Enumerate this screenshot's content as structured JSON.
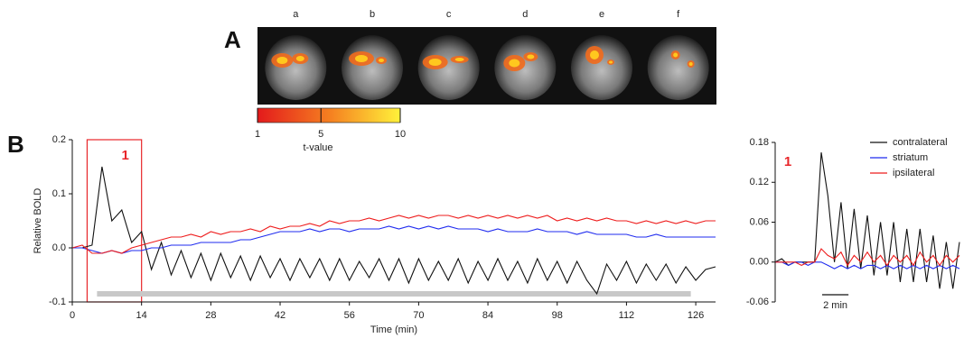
{
  "figure": {
    "panel_a": "A",
    "panel_b": "B",
    "image_labels": [
      "a",
      "b",
      "c",
      "d",
      "e",
      "f"
    ],
    "colorbar": {
      "lim": [
        1,
        10
      ],
      "ticks": [
        1,
        5,
        10
      ],
      "label": "t-value"
    }
  },
  "chart_data": [
    {
      "type": "line",
      "ylabel": "Relative BOLD",
      "xlabel": "Time (min)",
      "xlim": [
        0,
        130
      ],
      "xticks": [
        0,
        14,
        28,
        42,
        56,
        70,
        84,
        98,
        112,
        126
      ],
      "ylim": [
        -0.1,
        0.2
      ],
      "yticks": [
        -0.1,
        {
          "value": 0,
          "label": "0.0"
        },
        0.1,
        0.2
      ],
      "highlight": {
        "x": [
          3,
          14
        ],
        "label": "1",
        "color": "#e8262a"
      },
      "stimulus_bar": {
        "x": [
          5,
          125
        ],
        "color": "#c8c8c8"
      },
      "x": [
        0,
        2,
        4,
        6,
        8,
        10,
        12,
        14,
        16,
        18,
        20,
        22,
        24,
        26,
        28,
        30,
        32,
        34,
        36,
        38,
        40,
        42,
        44,
        46,
        48,
        50,
        52,
        54,
        56,
        58,
        60,
        62,
        64,
        66,
        68,
        70,
        72,
        74,
        76,
        78,
        80,
        82,
        84,
        86,
        88,
        90,
        92,
        94,
        96,
        98,
        100,
        102,
        104,
        106,
        108,
        110,
        112,
        114,
        116,
        118,
        120,
        122,
        124,
        126,
        128,
        130
      ],
      "series": [
        {
          "color": "#111111",
          "values": [
            0,
            0,
            0.005,
            0.15,
            0.05,
            0.07,
            0.01,
            0.03,
            -0.04,
            0.01,
            -0.05,
            -0.005,
            -0.055,
            -0.01,
            -0.06,
            -0.01,
            -0.055,
            -0.015,
            -0.06,
            -0.015,
            -0.055,
            -0.02,
            -0.06,
            -0.02,
            -0.055,
            -0.02,
            -0.06,
            -0.02,
            -0.06,
            -0.025,
            -0.055,
            -0.02,
            -0.06,
            -0.02,
            -0.065,
            -0.02,
            -0.06,
            -0.025,
            -0.06,
            -0.02,
            -0.065,
            -0.025,
            -0.06,
            -0.02,
            -0.06,
            -0.025,
            -0.065,
            -0.02,
            -0.06,
            -0.025,
            -0.065,
            -0.025,
            -0.06,
            -0.085,
            -0.03,
            -0.06,
            -0.025,
            -0.065,
            -0.03,
            -0.06,
            -0.03,
            -0.065,
            -0.035,
            -0.06,
            -0.04,
            -0.035
          ]
        },
        {
          "color": "#1f2bef",
          "values": [
            0,
            0,
            -0.005,
            -0.01,
            -0.005,
            -0.01,
            -0.005,
            -0.005,
            0,
            0,
            0.005,
            0.005,
            0.005,
            0.01,
            0.01,
            0.01,
            0.01,
            0.015,
            0.015,
            0.02,
            0.025,
            0.03,
            0.03,
            0.03,
            0.035,
            0.03,
            0.035,
            0.035,
            0.03,
            0.035,
            0.035,
            0.035,
            0.04,
            0.035,
            0.04,
            0.035,
            0.04,
            0.035,
            0.04,
            0.035,
            0.035,
            0.035,
            0.03,
            0.035,
            0.03,
            0.03,
            0.03,
            0.035,
            0.03,
            0.03,
            0.03,
            0.025,
            0.03,
            0.025,
            0.025,
            0.025,
            0.025,
            0.02,
            0.02,
            0.025,
            0.02,
            0.02,
            0.02,
            0.02,
            0.02,
            0.02
          ]
        },
        {
          "color": "#ee1c1c",
          "values": [
            0,
            0.005,
            -0.01,
            -0.01,
            -0.005,
            -0.01,
            0,
            0.005,
            0.01,
            0.015,
            0.02,
            0.02,
            0.025,
            0.02,
            0.03,
            0.025,
            0.03,
            0.03,
            0.035,
            0.03,
            0.04,
            0.035,
            0.04,
            0.04,
            0.045,
            0.04,
            0.05,
            0.045,
            0.05,
            0.05,
            0.055,
            0.05,
            0.055,
            0.06,
            0.055,
            0.06,
            0.055,
            0.06,
            0.06,
            0.055,
            0.06,
            0.055,
            0.06,
            0.055,
            0.06,
            0.055,
            0.06,
            0.055,
            0.06,
            0.05,
            0.055,
            0.05,
            0.055,
            0.05,
            0.055,
            0.05,
            0.05,
            0.045,
            0.05,
            0.045,
            0.05,
            0.045,
            0.05,
            0.045,
            0.05,
            0.05
          ]
        }
      ]
    },
    {
      "type": "line",
      "annotation": "1",
      "xlim": [
        0,
        14
      ],
      "ylim": [
        -0.06,
        0.18
      ],
      "yticks": [
        -0.06,
        {
          "value": 0,
          "label": "0.00"
        },
        0.06,
        0.12,
        0.18
      ],
      "scale_bar": {
        "length": 2,
        "label": "2 min"
      },
      "x": [
        0,
        0.5,
        1,
        1.5,
        2,
        2.5,
        3,
        3.5,
        4,
        4.5,
        5,
        5.5,
        6,
        6.5,
        7,
        7.5,
        8,
        8.5,
        9,
        9.5,
        10,
        10.5,
        11,
        11.5,
        12,
        12.5,
        13,
        13.5,
        14
      ],
      "series": [
        {
          "name": "contralateral",
          "color": "#111111",
          "values": [
            0,
            0.005,
            -0.005,
            0,
            0,
            0,
            0,
            0.165,
            0.1,
            0,
            0.09,
            -0.01,
            0.08,
            -0.01,
            0.07,
            -0.02,
            0.06,
            -0.02,
            0.06,
            -0.03,
            0.05,
            -0.03,
            0.05,
            -0.03,
            0.04,
            -0.04,
            0.03,
            -0.04,
            0.03
          ]
        },
        {
          "name": "striatum",
          "color": "#1f2bef",
          "values": [
            0,
            0,
            -0.005,
            0,
            0,
            -0.005,
            0,
            0,
            -0.005,
            -0.01,
            -0.005,
            -0.01,
            -0.005,
            -0.01,
            -0.005,
            -0.005,
            -0.01,
            -0.005,
            -0.01,
            -0.005,
            -0.01,
            -0.005,
            -0.01,
            -0.005,
            -0.01,
            -0.005,
            -0.01,
            -0.005,
            -0.01
          ]
        },
        {
          "name": "ipsilateral",
          "color": "#ee1c1c",
          "values": [
            0,
            0,
            0,
            0,
            -0.005,
            0,
            0,
            0.02,
            0.01,
            0.005,
            0.015,
            -0.005,
            0.01,
            0,
            0.015,
            0,
            0.01,
            -0.005,
            0.01,
            0,
            0.01,
            -0.005,
            0.015,
            0,
            0.01,
            -0.005,
            0.01,
            0,
            0.01
          ]
        }
      ]
    }
  ]
}
